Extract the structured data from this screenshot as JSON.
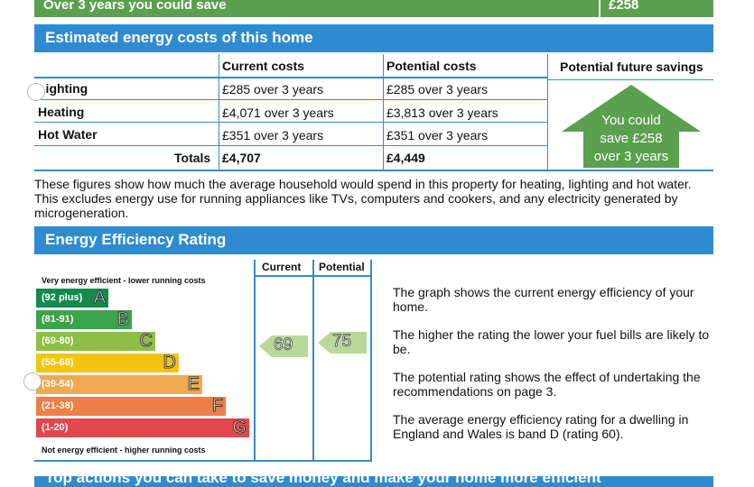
{
  "top_banner": {
    "label": "Over 3 years you could save",
    "value": "£258"
  },
  "costs_section": {
    "title": "Estimated energy costs of this home",
    "headers": {
      "current": "Current costs",
      "potential": "Potential costs",
      "savings": "Potential future savings"
    },
    "rows": [
      {
        "label": "Lighting",
        "current": "£285 over 3 years",
        "potential": "£285 over 3 years"
      },
      {
        "label": "Heating",
        "current": "£4,071 over 3 years",
        "potential": "£3,813 over 3 years"
      },
      {
        "label": "Hot Water",
        "current": "£351 over 3 years",
        "potential": "£351 over 3 years"
      }
    ],
    "totals": {
      "label": "Totals",
      "current": "£4,707",
      "potential": "£4,449"
    },
    "savings_badge": {
      "line1": "You could",
      "line2": "save £258",
      "line3": "over 3 years"
    }
  },
  "costs_note": "These figures show how much the average household would spend in this property for heating, lighting and hot water. This excludes energy use for running appliances like TVs, computers and cookers, and any electricity generated by microgeneration.",
  "rating_section": {
    "title": "Energy Efficiency Rating",
    "top_caption": "Very energy efficient - lower running costs",
    "bottom_caption": "Not energy efficient - higher running costs",
    "col_current": "Current",
    "col_potential": "Potential",
    "bands": [
      {
        "range": "(92 plus)",
        "letter": "A",
        "color": "#138a4e"
      },
      {
        "range": "(81-91)",
        "letter": "B",
        "color": "#3ba34a"
      },
      {
        "range": "(69-80)",
        "letter": "C",
        "color": "#8cbf43"
      },
      {
        "range": "(55-68)",
        "letter": "D",
        "color": "#f2c514"
      },
      {
        "range": "(39-54)",
        "letter": "E",
        "color": "#f0a94f"
      },
      {
        "range": "(21-38)",
        "letter": "F",
        "color": "#ec7f46"
      },
      {
        "range": "(1-20)",
        "letter": "G",
        "color": "#e2474b"
      }
    ],
    "current_rating": "69",
    "potential_rating": "75",
    "current_band": "C",
    "potential_band": "C",
    "arrow_color": "#b9d99a",
    "info": [
      "The graph shows the current energy efficiency of your home.",
      "The higher the rating the lower your fuel bills are likely to be.",
      "The potential rating shows the effect of undertaking the recommendations on page 3.",
      "The average energy efficiency rating for a dwelling in England and Wales is band D (rating 60)."
    ]
  },
  "actions_section": {
    "title": "Top actions you can take to save money and make your home more efficient"
  }
}
